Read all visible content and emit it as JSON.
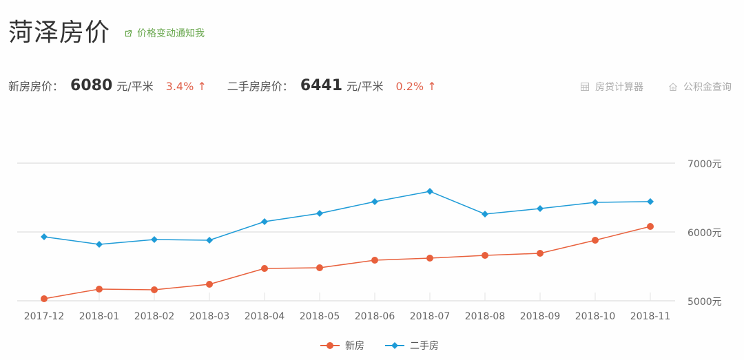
{
  "header": {
    "title": "菏泽房价",
    "notify_link": "价格变动通知我",
    "notify_icon": "external-link-icon"
  },
  "prices": {
    "new": {
      "label": "新房房价：",
      "value": "6080",
      "unit": "元/平米",
      "change": "3.4% ↑"
    },
    "second": {
      "label": "二手房房价：",
      "value": "6441",
      "unit": "元/平米",
      "change": "0.2% ↑"
    }
  },
  "tools": {
    "loan_calc": {
      "label": "房贷计算器",
      "icon": "calculator-icon"
    },
    "fund_query": {
      "label": "公积金查询",
      "icon": "house-icon"
    }
  },
  "colors": {
    "new_house": "#e8603c",
    "second_house": "#1e9bd7",
    "accent_green": "#6aa84f",
    "change_red": "#e0604a"
  },
  "chart_data": {
    "type": "line",
    "title": "",
    "xlabel": "",
    "ylabel": "",
    "categories": [
      "2017-12",
      "2018-01",
      "2018-02",
      "2018-03",
      "2018-04",
      "2018-05",
      "2018-06",
      "2018-07",
      "2018-08",
      "2018-09",
      "2018-10",
      "2018-11"
    ],
    "series": [
      {
        "name": "新房",
        "color": "#e8603c",
        "marker": "circle",
        "values": [
          5030,
          5170,
          5160,
          5240,
          5470,
          5480,
          5590,
          5620,
          5660,
          5690,
          5880,
          6080
        ]
      },
      {
        "name": "二手房",
        "color": "#1e9bd7",
        "marker": "diamond",
        "values": [
          5930,
          5820,
          5890,
          5880,
          6150,
          6270,
          6440,
          6590,
          6260,
          6340,
          6430,
          6441
        ]
      }
    ],
    "ylim": [
      5000,
      7000
    ],
    "yticks": [
      "5000元",
      "6000元",
      "7000元"
    ],
    "yaxis_position": "right",
    "grid": true,
    "legend_position": "bottom-center"
  }
}
